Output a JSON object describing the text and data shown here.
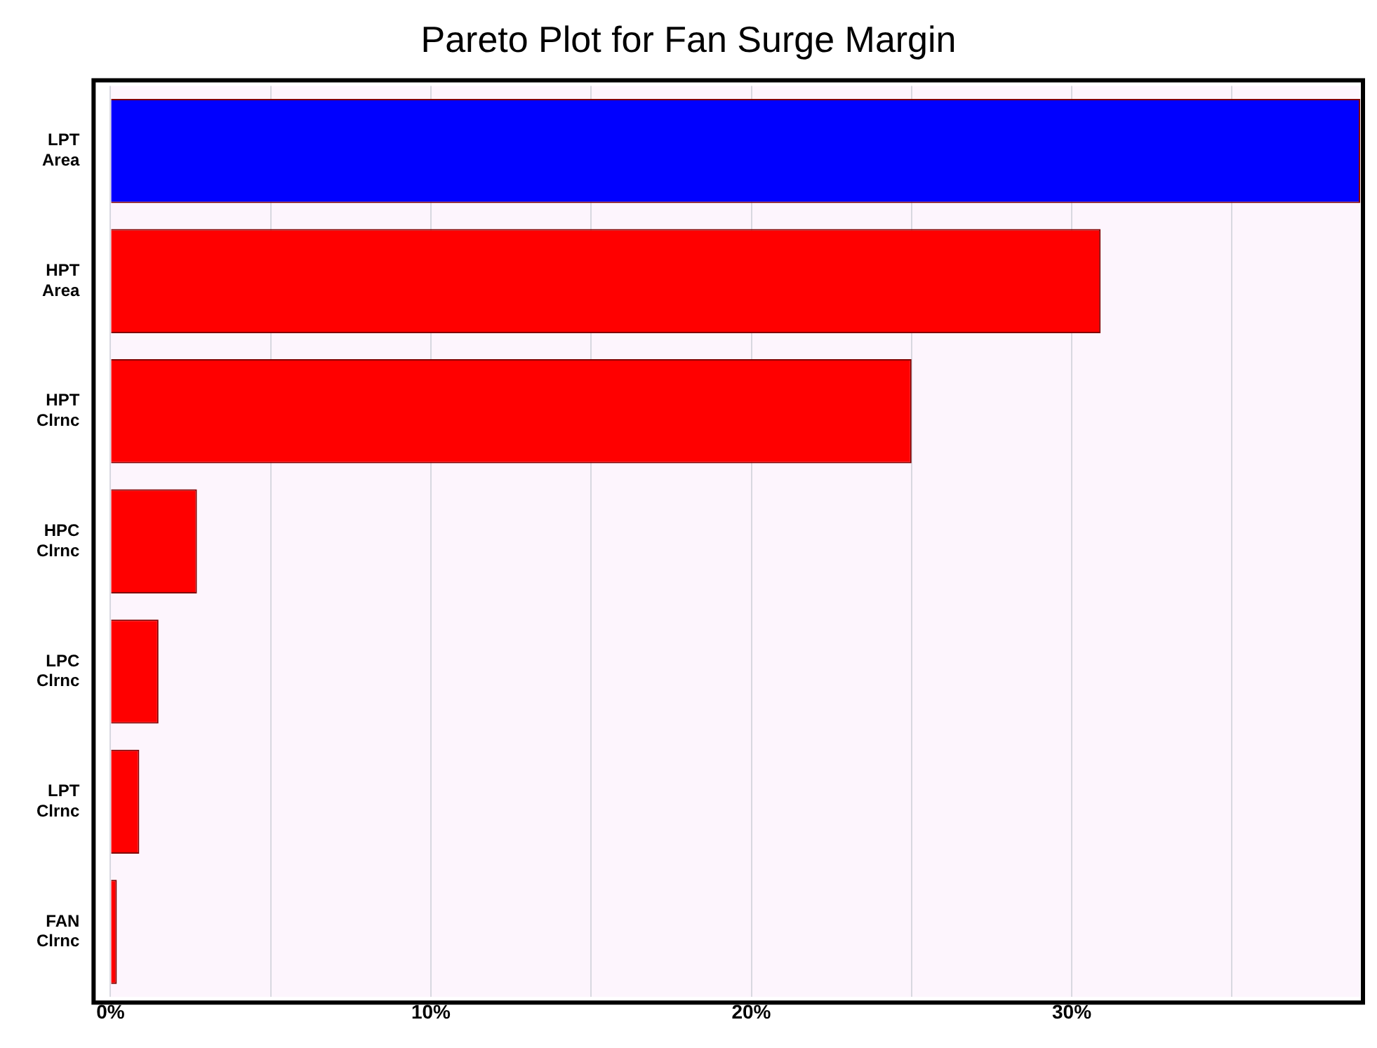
{
  "chart_data": {
    "type": "bar",
    "orientation": "horizontal",
    "title": "Pareto Plot for Fan Surge Margin",
    "categories": [
      "LPT Area",
      "HPT Area",
      "HPT Clrnc",
      "HPC Clrnc",
      "LPC Clrnc",
      "LPT Clrnc",
      "FAN Clrnc"
    ],
    "values": [
      39,
      30.9,
      25,
      2.7,
      1.5,
      0.9,
      0.2
    ],
    "colors": [
      "#0000ff",
      "#ff0000",
      "#ff0000",
      "#ff0000",
      "#ff0000",
      "#ff0000",
      "#ff0000"
    ],
    "xlim": [
      0,
      39
    ],
    "xticks": [
      {
        "value": 0,
        "label": "0%"
      },
      {
        "value": 5,
        "label": null
      },
      {
        "value": 10,
        "label": "10%"
      },
      {
        "value": 15,
        "label": null
      },
      {
        "value": 20,
        "label": "20%"
      },
      {
        "value": 25,
        "label": null
      },
      {
        "value": 30,
        "label": "30%"
      },
      {
        "value": 35,
        "label": null
      }
    ],
    "grid": "x",
    "legend": false
  }
}
